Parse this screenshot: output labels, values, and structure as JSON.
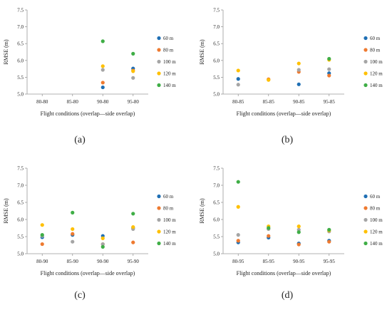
{
  "legend": [
    {
      "name": "60 m",
      "color": "#1f6fb4"
    },
    {
      "name": "80 m",
      "color": "#ee7a30"
    },
    {
      "name": "100 m",
      "color": "#a5a5a5"
    },
    {
      "name": "120 m",
      "color": "#ffc000"
    },
    {
      "name": "140 m",
      "color": "#3fae46"
    }
  ],
  "chart_data": [
    {
      "type": "scatter",
      "panel_label": "(a)",
      "xlabel": "Flight conditions (overlap—side overlap)",
      "ylabel": "RMSE (m)",
      "ylim": [
        5.0,
        7.5
      ],
      "yticks": [
        "5.0",
        "5.5",
        "6.0",
        "6.5",
        "7.0",
        "7.5"
      ],
      "categories": [
        "80-80",
        "85-80",
        "90-80",
        "95-80"
      ],
      "series": [
        {
          "name": "60 m",
          "values": [
            null,
            null,
            5.2,
            5.76
          ]
        },
        {
          "name": "80 m",
          "values": [
            null,
            null,
            5.34,
            5.7
          ]
        },
        {
          "name": "100 m",
          "values": [
            null,
            null,
            5.72,
            5.48
          ]
        },
        {
          "name": "120 m",
          "values": [
            null,
            null,
            5.83,
            5.68
          ]
        },
        {
          "name": "140 m",
          "values": [
            null,
            null,
            6.57,
            6.2
          ]
        }
      ]
    },
    {
      "type": "scatter",
      "panel_label": "(b)",
      "xlabel": "Flight conditions (overlap—side overlap)",
      "ylabel": "RMSE (m)",
      "ylim": [
        5.0,
        7.5
      ],
      "yticks": [
        "5.0",
        "5.5",
        "6.0",
        "6.5",
        "7.0",
        "7.5"
      ],
      "categories": [
        "80-85",
        "85-85",
        "90-85",
        "95-85"
      ],
      "series": [
        {
          "name": "60 m",
          "values": [
            5.45,
            null,
            5.29,
            5.62
          ]
        },
        {
          "name": "80 m",
          "values": [
            null,
            5.44,
            5.66,
            5.55
          ]
        },
        {
          "name": "100 m",
          "values": [
            5.28,
            null,
            5.72,
            5.74
          ]
        },
        {
          "name": "120 m",
          "values": [
            5.7,
            5.42,
            5.91,
            6.02
          ]
        },
        {
          "name": "140 m",
          "values": [
            null,
            null,
            null,
            6.05
          ]
        }
      ]
    },
    {
      "type": "scatter",
      "panel_label": "(c)",
      "xlabel": "Flight conditions (overlap—side overlap)",
      "ylabel": "RMSE (m)",
      "ylim": [
        5.0,
        7.5
      ],
      "yticks": [
        "5.0",
        "5.5",
        "6.0",
        "6.5",
        "7.0",
        "7.5"
      ],
      "categories": [
        "80-90",
        "85-90",
        "90-90",
        "95-90"
      ],
      "series": [
        {
          "name": "60 m",
          "values": [
            5.48,
            5.55,
            5.52,
            5.75
          ]
        },
        {
          "name": "80 m",
          "values": [
            5.28,
            5.58,
            5.28,
            5.33
          ]
        },
        {
          "name": "100 m",
          "values": [
            5.52,
            5.35,
            5.28,
            5.72
          ]
        },
        {
          "name": "120 m",
          "values": [
            5.84,
            5.72,
            5.45,
            5.78
          ]
        },
        {
          "name": "140 m",
          "values": [
            5.55,
            6.2,
            5.2,
            6.17
          ]
        }
      ]
    },
    {
      "type": "scatter",
      "panel_label": "(d)",
      "xlabel": "Flight conditions (overlap—side overlap)",
      "ylabel": "RMSE (m)",
      "ylim": [
        5.0,
        7.5
      ],
      "yticks": [
        "5.0",
        "5.5",
        "6.0",
        "6.5",
        "7.0",
        "7.5"
      ],
      "categories": [
        "80-95",
        "85-95",
        "90-95",
        "95-95"
      ],
      "series": [
        {
          "name": "60 m",
          "values": [
            5.33,
            5.47,
            5.3,
            5.38
          ]
        },
        {
          "name": "80 m",
          "values": [
            5.38,
            5.52,
            5.27,
            5.35
          ]
        },
        {
          "name": "100 m",
          "values": [
            5.55,
            5.72,
            5.7,
            5.65
          ]
        },
        {
          "name": "120 m",
          "values": [
            6.37,
            5.8,
            5.8,
            5.68
          ]
        },
        {
          "name": "140 m",
          "values": [
            7.1,
            5.75,
            5.63,
            5.7
          ]
        }
      ]
    }
  ]
}
